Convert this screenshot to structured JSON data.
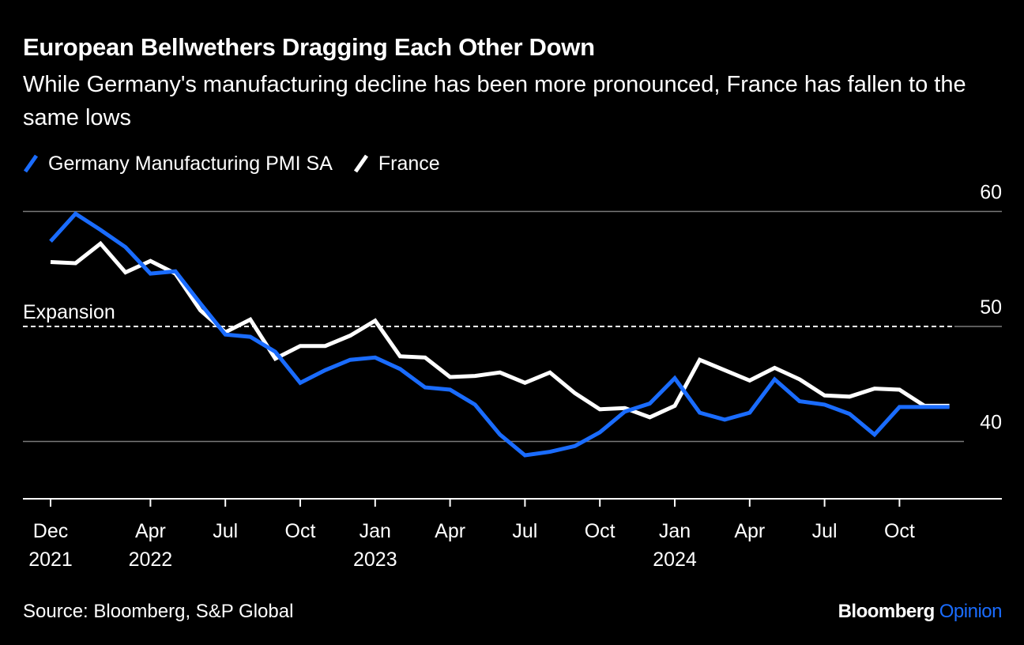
{
  "header": {
    "title": "European Bellwethers Dragging Each Other Down",
    "subtitle": "While Germany's manufacturing decline has been more pronounced, France has fallen to the same lows"
  },
  "footer": {
    "source": "Source: Bloomberg, S&P Global",
    "brand_name": "Bloomberg",
    "brand_suffix": "Opinion"
  },
  "colors": {
    "germany": "#1a6cff",
    "france": "#ffffff",
    "background": "#000000",
    "grid": "#7a7a7a"
  },
  "chart_data": {
    "type": "line",
    "title": "European Bellwethers Dragging Each Other Down",
    "subtitle": "While Germany's manufacturing decline has been more pronounced, France has fallen to the same lows",
    "x": [
      "2021-12",
      "2022-01",
      "2022-02",
      "2022-03",
      "2022-04",
      "2022-05",
      "2022-06",
      "2022-07",
      "2022-08",
      "2022-09",
      "2022-10",
      "2022-11",
      "2022-12",
      "2023-01",
      "2023-02",
      "2023-03",
      "2023-04",
      "2023-05",
      "2023-06",
      "2023-07",
      "2023-08",
      "2023-09",
      "2023-10",
      "2023-11",
      "2023-12",
      "2024-01",
      "2024-02",
      "2024-03",
      "2024-04",
      "2024-05",
      "2024-06",
      "2024-07",
      "2024-08",
      "2024-09",
      "2024-10",
      "2024-11",
      "2024-12"
    ],
    "series": [
      {
        "name": "Germany Manufacturing PMI SA",
        "color": "#1a6cff",
        "values": [
          57.4,
          59.8,
          58.4,
          56.9,
          54.6,
          54.8,
          52.0,
          49.3,
          49.1,
          47.8,
          45.1,
          46.2,
          47.1,
          47.3,
          46.3,
          44.7,
          44.5,
          43.2,
          40.6,
          38.8,
          39.1,
          39.6,
          40.8,
          42.6,
          43.3,
          45.5,
          42.5,
          41.9,
          42.5,
          45.4,
          43.5,
          43.2,
          42.4,
          40.6,
          43.0,
          43.0,
          43.0
        ]
      },
      {
        "name": "France",
        "color": "#ffffff",
        "values": [
          55.6,
          55.5,
          57.2,
          54.7,
          55.7,
          54.6,
          51.4,
          49.5,
          50.6,
          47.2,
          48.3,
          48.3,
          49.2,
          50.5,
          47.4,
          47.3,
          45.6,
          45.7,
          46.0,
          45.1,
          46.0,
          44.2,
          42.8,
          42.9,
          42.1,
          43.1,
          47.1,
          46.2,
          45.3,
          46.4,
          45.4,
          44.0,
          43.9,
          44.6,
          44.5,
          43.1,
          43.1
        ]
      }
    ],
    "reference_line": {
      "value": 50,
      "label": "Expansion",
      "style": "dashed"
    },
    "y_axis": {
      "position": "right",
      "ticks": [
        40,
        50,
        60
      ],
      "ylim": [
        35,
        62
      ]
    },
    "x_axis": {
      "ticks": [
        {
          "x": "2021-12",
          "label": "Dec",
          "year": "2021"
        },
        {
          "x": "2022-04",
          "label": "Apr",
          "year": "2022"
        },
        {
          "x": "2022-07",
          "label": "Jul",
          "year": ""
        },
        {
          "x": "2022-10",
          "label": "Oct",
          "year": ""
        },
        {
          "x": "2023-01",
          "label": "Jan",
          "year": "2023"
        },
        {
          "x": "2023-04",
          "label": "Apr",
          "year": ""
        },
        {
          "x": "2023-07",
          "label": "Jul",
          "year": ""
        },
        {
          "x": "2023-10",
          "label": "Oct",
          "year": ""
        },
        {
          "x": "2024-01",
          "label": "Jan",
          "year": "2024"
        },
        {
          "x": "2024-04",
          "label": "Apr",
          "year": ""
        },
        {
          "x": "2024-07",
          "label": "Jul",
          "year": ""
        },
        {
          "x": "2024-10",
          "label": "Oct",
          "year": ""
        }
      ]
    },
    "legend": {
      "placement": "top-left"
    },
    "grid": true
  }
}
